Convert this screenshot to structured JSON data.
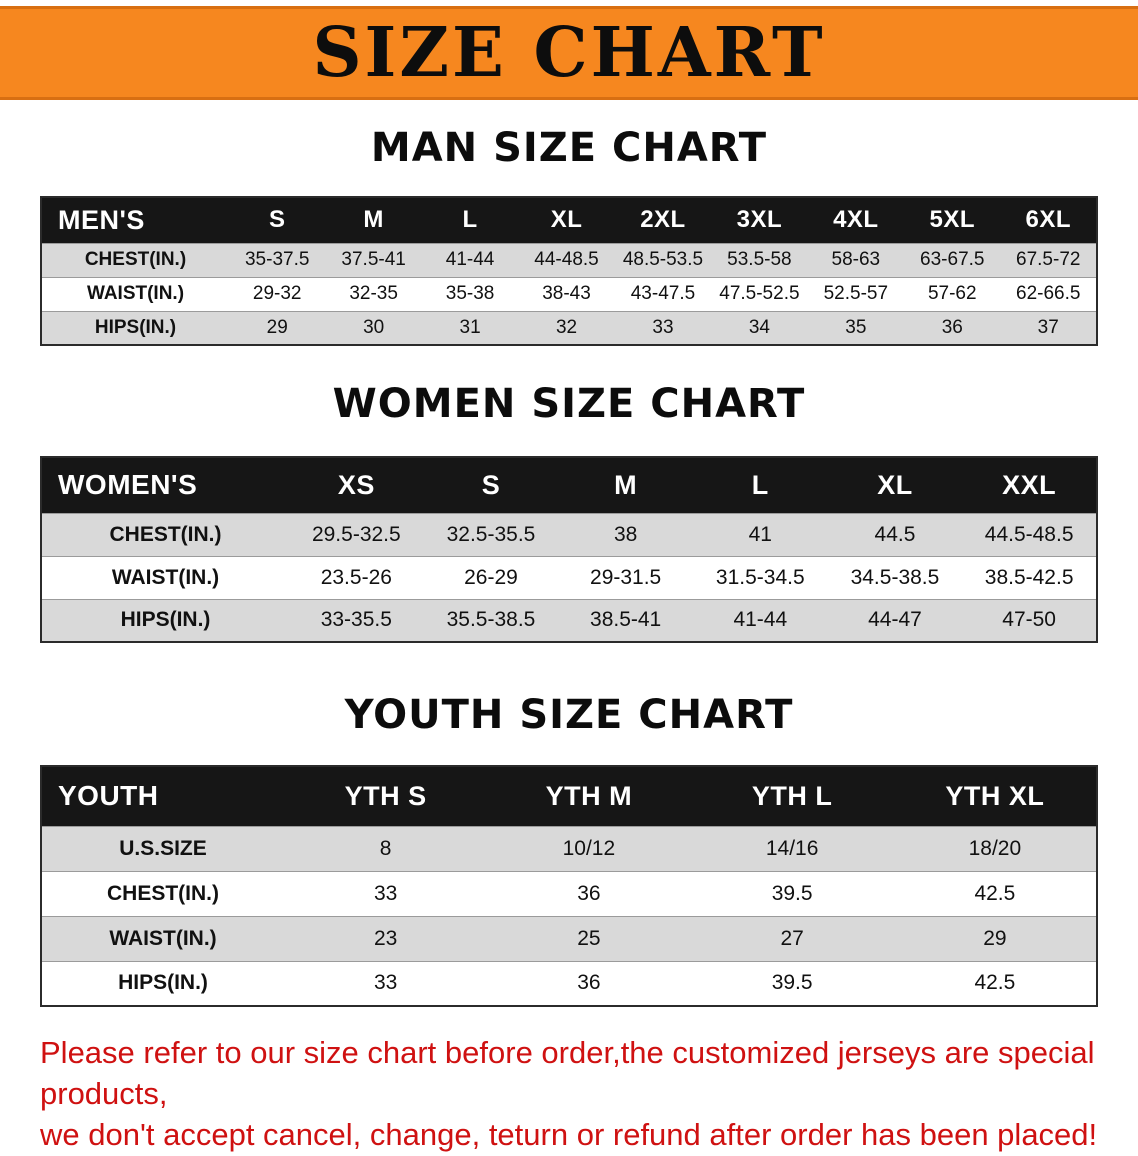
{
  "banner": {
    "title": "SIZE CHART"
  },
  "colors": {
    "banner_orange": "#f6871f",
    "header_black": "#161616",
    "row_gray": "#d9d9d9",
    "disclaimer_red": "#cf1111"
  },
  "men": {
    "heading": "MAN SIZE CHART",
    "table": {
      "header": [
        "MEN'S",
        "S",
        "M",
        "L",
        "XL",
        "2XL",
        "3XL",
        "4XL",
        "5XL",
        "6XL"
      ],
      "rows": [
        {
          "label": "CHEST(IN.)",
          "values": [
            "35-37.5",
            "37.5-41",
            "41-44",
            "44-48.5",
            "48.5-53.5",
            "53.5-58",
            "58-63",
            "63-67.5",
            "67.5-72"
          ]
        },
        {
          "label": "WAIST(IN.)",
          "values": [
            "29-32",
            "32-35",
            "35-38",
            "38-43",
            "43-47.5",
            "47.5-52.5",
            "52.5-57",
            "57-62",
            "62-66.5"
          ]
        },
        {
          "label": "HIPS(IN.)",
          "values": [
            "29",
            "30",
            "31",
            "32",
            "33",
            "34",
            "35",
            "36",
            "37"
          ]
        }
      ]
    }
  },
  "women": {
    "heading": "WOMEN SIZE CHART",
    "table": {
      "header": [
        "WOMEN'S",
        "XS",
        "S",
        "M",
        "L",
        "XL",
        "XXL"
      ],
      "rows": [
        {
          "label": "CHEST(IN.)",
          "values": [
            "29.5-32.5",
            "32.5-35.5",
            "38",
            "41",
            "44.5",
            "44.5-48.5"
          ]
        },
        {
          "label": "WAIST(IN.)",
          "values": [
            "23.5-26",
            "26-29",
            "29-31.5",
            "31.5-34.5",
            "34.5-38.5",
            "38.5-42.5"
          ]
        },
        {
          "label": "HIPS(IN.)",
          "values": [
            "33-35.5",
            "35.5-38.5",
            "38.5-41",
            "41-44",
            "44-47",
            "47-50"
          ]
        }
      ]
    }
  },
  "youth": {
    "heading": "YOUTH SIZE CHART",
    "table": {
      "header": [
        "YOUTH",
        "YTH S",
        "YTH M",
        "YTH L",
        "YTH XL"
      ],
      "rows": [
        {
          "label": "U.S.SIZE",
          "values": [
            "8",
            "10/12",
            "14/16",
            "18/20"
          ]
        },
        {
          "label": "CHEST(IN.)",
          "values": [
            "33",
            "36",
            "39.5",
            "42.5"
          ]
        },
        {
          "label": "WAIST(IN.)",
          "values": [
            "23",
            "25",
            "27",
            "29"
          ]
        },
        {
          "label": "HIPS(IN.)",
          "values": [
            "33",
            "36",
            "39.5",
            "42.5"
          ]
        }
      ]
    }
  },
  "disclaimer": {
    "line1": "Please refer to our size chart before order,the customized jerseys are special products,",
    "line2": "we don't accept cancel, change, teturn or refund after order has been placed!"
  }
}
